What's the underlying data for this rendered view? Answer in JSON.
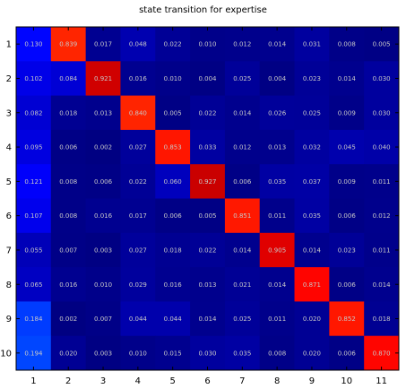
{
  "chart_data": {
    "type": "heatmap",
    "title": "state transition for expertise",
    "x_tick_labels": [
      "1",
      "2",
      "3",
      "4",
      "5",
      "6",
      "7",
      "8",
      "9",
      "10",
      "11"
    ],
    "y_tick_labels": [
      "1",
      "2",
      "3",
      "4",
      "5",
      "6",
      "7",
      "8",
      "9",
      "10"
    ],
    "value_range": [
      0,
      1
    ],
    "colormap": "jet",
    "values": [
      [
        0.13,
        0.839,
        0.017,
        0.048,
        0.022,
        0.01,
        0.012,
        0.014,
        0.031,
        0.008,
        0.005
      ],
      [
        0.102,
        0.084,
        0.921,
        0.016,
        0.01,
        0.004,
        0.025,
        0.004,
        0.023,
        0.014,
        0.03
      ],
      [
        0.082,
        0.018,
        0.013,
        0.84,
        0.005,
        0.022,
        0.014,
        0.026,
        0.025,
        0.009,
        0.03
      ],
      [
        0.095,
        0.006,
        0.002,
        0.027,
        0.853,
        0.033,
        0.012,
        0.013,
        0.032,
        0.045,
        0.04
      ],
      [
        0.121,
        0.008,
        0.006,
        0.022,
        0.06,
        0.927,
        0.006,
        0.035,
        0.037,
        0.009,
        0.011
      ],
      [
        0.107,
        0.008,
        0.016,
        0.017,
        0.006,
        0.005,
        0.851,
        0.011,
        0.035,
        0.006,
        0.012
      ],
      [
        0.055,
        0.007,
        0.003,
        0.027,
        0.018,
        0.022,
        0.014,
        0.905,
        0.014,
        0.023,
        0.011
      ],
      [
        0.065,
        0.016,
        0.01,
        0.029,
        0.016,
        0.013,
        0.021,
        0.014,
        0.871,
        0.006,
        0.014
      ],
      [
        0.184,
        0.002,
        0.007,
        0.044,
        0.044,
        0.014,
        0.025,
        0.011,
        0.02,
        0.852,
        0.018
      ],
      [
        0.194,
        0.02,
        0.003,
        0.01,
        0.015,
        0.03,
        0.035,
        0.008,
        0.02,
        0.006,
        0.87
      ]
    ],
    "cell_labels": [
      [
        "0.130",
        "0.839",
        "0.017",
        "0.048",
        "0.022",
        "0.010",
        "0.012",
        "0.014",
        "0.031",
        "0.008",
        "0.005"
      ],
      [
        "0.102",
        "0.084",
        "0.921",
        "0.016",
        "0.010",
        "0.004",
        "0.025",
        "0.004",
        "0.023",
        "0.014",
        "0.030"
      ],
      [
        "0.082",
        "0.018",
        "0.013",
        "0.840",
        "0.005",
        "0.022",
        "0.014",
        "0.026",
        "0.025",
        "0.009",
        "0.030"
      ],
      [
        "0.095",
        "0.006",
        "0.002",
        "0.027",
        "0.853",
        "0.033",
        "0.012",
        "0.013",
        "0.032",
        "0.045",
        "0.040"
      ],
      [
        "0.121",
        "0.008",
        "0.006",
        "0.022",
        "0.060",
        "0.927",
        "0.006",
        "0.035",
        "0.037",
        "0.009",
        "0.011"
      ],
      [
        "0.107",
        "0.008",
        "0.016",
        "0.017",
        "0.006",
        "0.005",
        "0.851",
        "0.011",
        "0.035",
        "0.006",
        "0.012"
      ],
      [
        "0.055",
        "0.007",
        "0.003",
        "0.027",
        "0.018",
        "0.022",
        "0.014",
        "0.905",
        "0.014",
        "0.023",
        "0.011"
      ],
      [
        "0.065",
        "0.016",
        "0.010",
        "0.029",
        "0.016",
        "0.013",
        "0.021",
        "0.014",
        "0.871",
        "0.006",
        "0.014"
      ],
      [
        "0.184",
        "0.002",
        "0.007",
        "0.044",
        "0.044",
        "0.014",
        "0.025",
        "0.011",
        "0.020",
        "0.852",
        "0.018"
      ],
      [
        "0.194",
        "0.020",
        "0.003",
        "0.010",
        "0.015",
        "0.030",
        "0.035",
        "0.008",
        "0.020",
        "0.006",
        "0.870"
      ]
    ]
  }
}
